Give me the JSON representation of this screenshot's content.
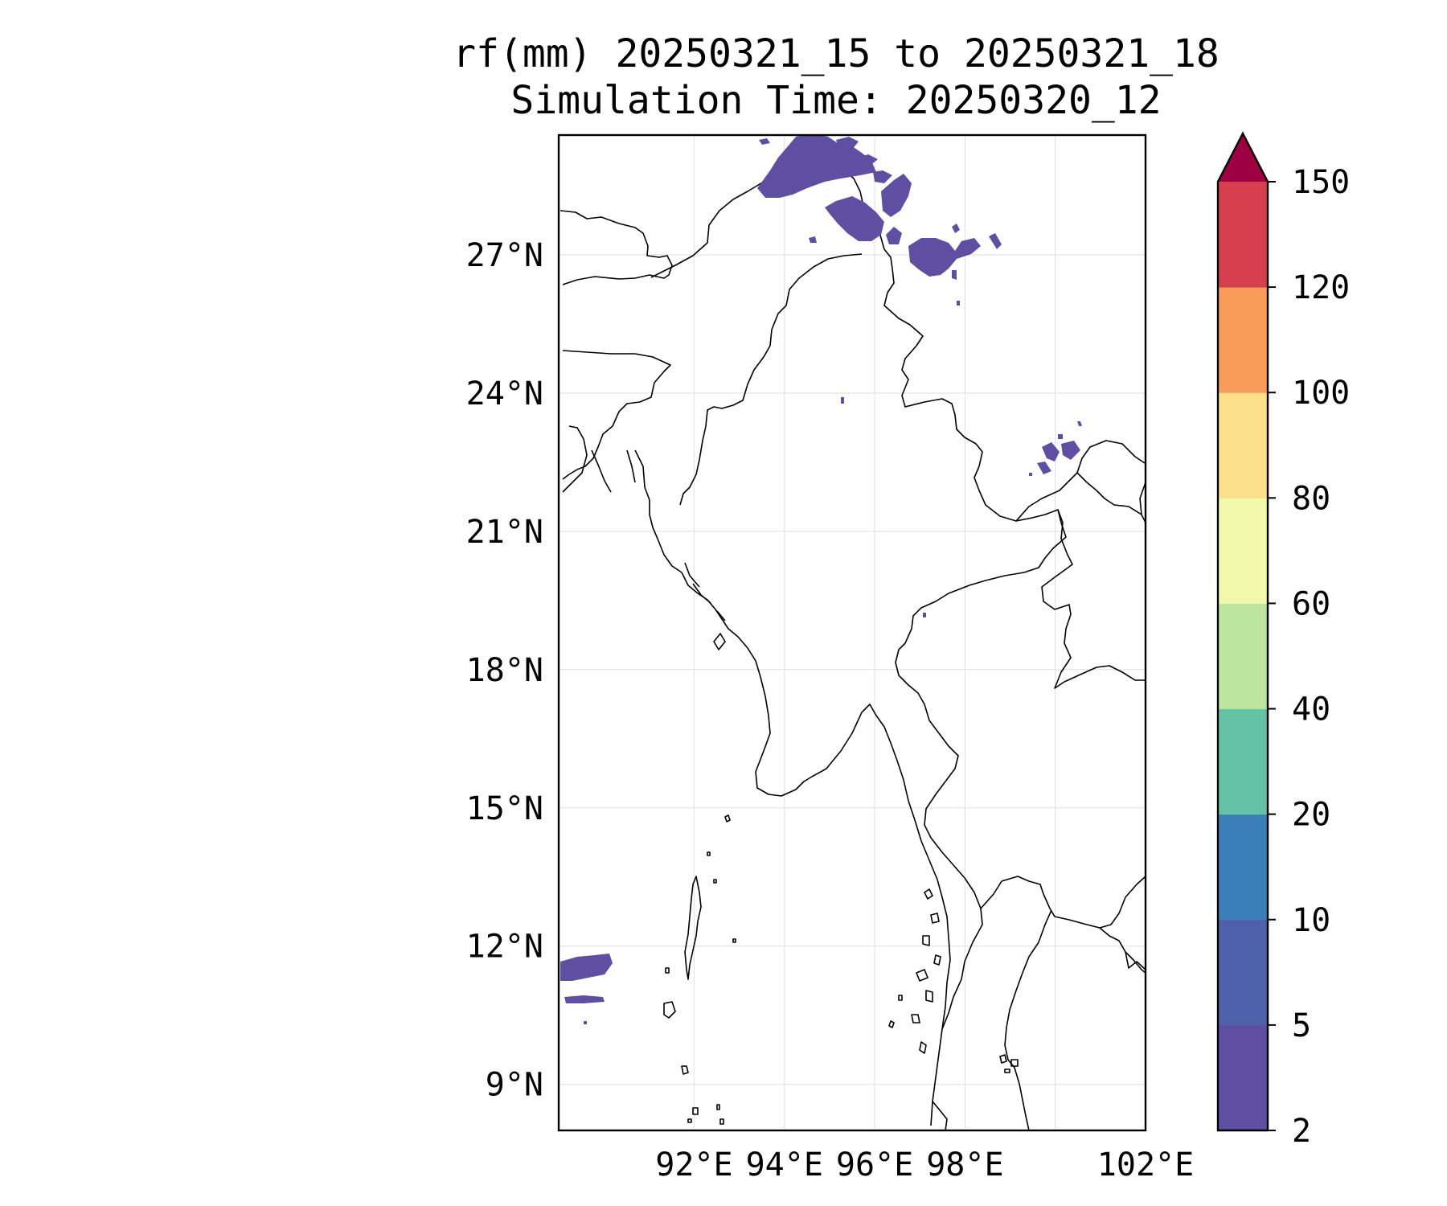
{
  "title": {
    "line1": "rf(mm) 20250321_15 to 20250321_18",
    "line2": "Simulation Time: 20250320_12"
  },
  "map": {
    "lon_range": [
      89.0,
      102.0
    ],
    "lat_range": [
      8.0,
      29.6
    ],
    "lat_ticks": [
      {
        "value": 27,
        "label": "27°N"
      },
      {
        "value": 24,
        "label": "24°N"
      },
      {
        "value": 21,
        "label": "21°N"
      },
      {
        "value": 18,
        "label": "18°N"
      },
      {
        "value": 15,
        "label": "15°N"
      },
      {
        "value": 12,
        "label": "12°N"
      },
      {
        "value": 9,
        "label": "9°N"
      }
    ],
    "lon_ticks": [
      {
        "value": 92,
        "label": "92°E"
      },
      {
        "value": 94,
        "label": "94°E"
      },
      {
        "value": 96,
        "label": "96°E"
      },
      {
        "value": 98,
        "label": "98°E"
      },
      {
        "value": 100,
        "label": ""
      },
      {
        "value": 102,
        "label": "102°E"
      }
    ],
    "gridlines": true,
    "rain_color_main": "#5e4fa2"
  },
  "colorbar": {
    "levels": [
      "2",
      "5",
      "10",
      "20",
      "40",
      "60",
      "80",
      "100",
      "120",
      "150"
    ],
    "colors": [
      "#5e4fa2",
      "#4f61aa",
      "#3b7fb8",
      "#66c2a5",
      "#bde5a0",
      "#f3f9ab",
      "#fbdf8a",
      "#f99b5b",
      "#d6404e"
    ],
    "extend_color": "#9e0142",
    "extend": "max"
  }
}
